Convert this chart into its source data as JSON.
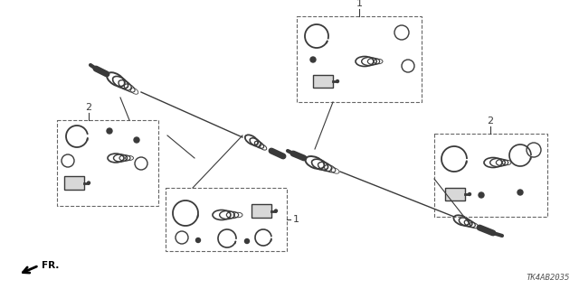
{
  "bg_color": "#ffffff",
  "lc": "#3a3a3a",
  "label_1": "1",
  "label_2": "2",
  "fr_label": "FR.",
  "part_number": "TK4AB2035",
  "fig_width": 6.4,
  "fig_height": 3.2,
  "dpi": 100
}
